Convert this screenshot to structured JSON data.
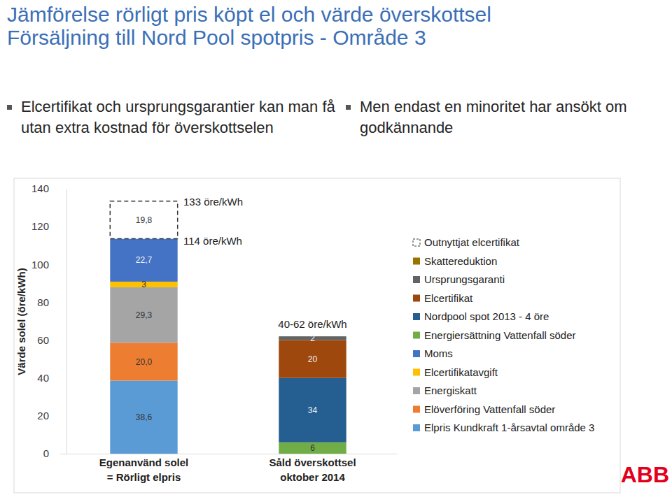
{
  "chart_data": {
    "type": "bar",
    "stacked": true,
    "data_labels": true,
    "title": "Jämförelse rörligt pris köpt el och värde överskottsel",
    "subtitle": "Försäljning till Nord Pool spotpris - Område 3",
    "y_label": "Värde solel (öre/kWh)",
    "categories": [
      "Egenanvänd solel\n= Rörligt elpris",
      "Såld överskottsel\noktober 2014"
    ],
    "ylim": [
      0,
      140
    ],
    "yticks": [
      0,
      20,
      40,
      60,
      80,
      100,
      120,
      140
    ],
    "grid": false,
    "annotations": [
      "133 öre/kWh",
      "114 öre/kWh",
      "40-62 öre/kWh"
    ],
    "series": [
      {
        "name": "Elpris Kundkraft 1-årsavtal område 3",
        "color": "#5b9bd5",
        "values": [
          38.6,
          null
        ],
        "value_labels": [
          "38,6",
          null
        ]
      },
      {
        "name": "Elöverföring Vattenfall söder",
        "color": "#ed7d31",
        "values": [
          20.0,
          null
        ],
        "value_labels": [
          "20,0",
          null
        ]
      },
      {
        "name": "Energiskatt",
        "color": "#a5a5a5",
        "values": [
          29.3,
          null
        ],
        "value_labels": [
          "29,3",
          null
        ]
      },
      {
        "name": "Elcertifikatavgift",
        "color": "#ffc000",
        "values": [
          3,
          null
        ],
        "value_labels": [
          "3",
          null
        ]
      },
      {
        "name": "Moms",
        "color": "#4472c4",
        "values": [
          22.7,
          null
        ],
        "value_labels": [
          "22,7",
          null
        ]
      },
      {
        "name": "Energiersättning Vattenfall söder",
        "color": "#70ad47",
        "values": [
          null,
          6
        ],
        "value_labels": [
          null,
          "6"
        ]
      },
      {
        "name": "Nordpool spot 2013 - 4 öre",
        "color": "#255e91",
        "values": [
          null,
          34
        ],
        "value_labels": [
          null,
          "34"
        ]
      },
      {
        "name": "Elcertifikat",
        "color": "#9e480e",
        "values": [
          null,
          20
        ],
        "value_labels": [
          null,
          "20"
        ]
      },
      {
        "name": "Ursprungsgaranti",
        "color": "#636363",
        "values": [
          null,
          2
        ],
        "value_labels": [
          null,
          "2"
        ]
      },
      {
        "name": "Skattereduktion",
        "color": "#997300",
        "values": [
          null,
          null
        ],
        "value_labels": [
          null,
          null
        ]
      },
      {
        "name": "Outnyttjat elcertifikat",
        "color": "#ffffff",
        "line_style": "dashed",
        "values": [
          19.8,
          null
        ],
        "value_labels": [
          "19,8",
          null
        ]
      }
    ]
  },
  "slide": {
    "bullets": [
      "Elcertifikat och ursprungsgarantier kan man få utan extra kostnad för överskottselen",
      "Men endast en minoritet har ansökt om godkännande"
    ],
    "logo": "ABB"
  }
}
